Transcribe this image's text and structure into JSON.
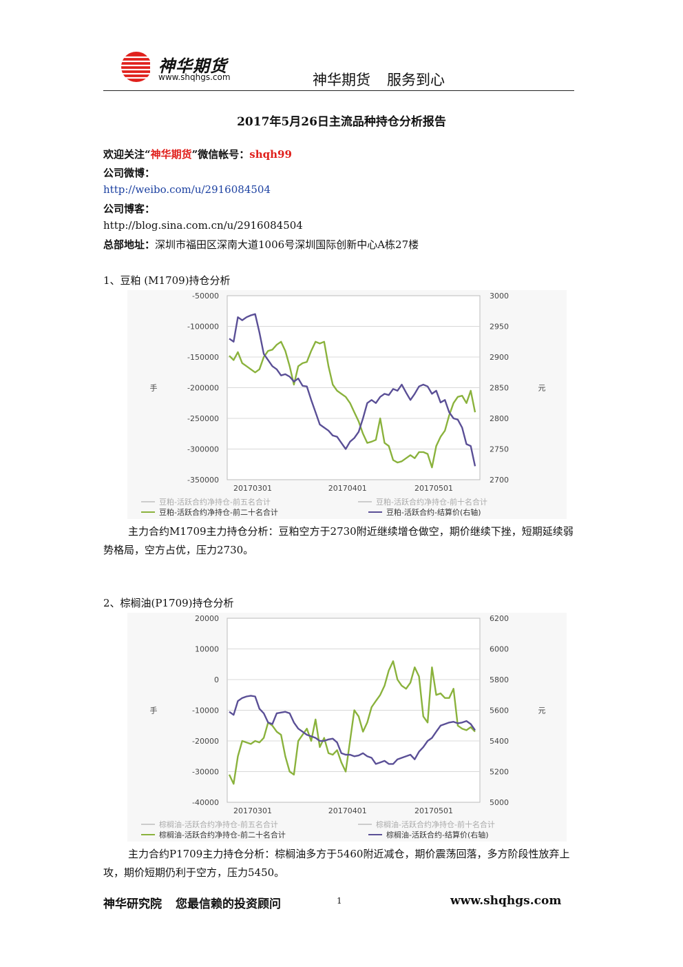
{
  "header": {
    "logo_name": "神华期货",
    "logo_url": "www.shqhgs.com",
    "slogan_left": "神华期货",
    "slogan_right": "服务到心"
  },
  "report": {
    "title": "2017年5月26日主流品种持仓分析报告",
    "follow_prefix": "欢迎关注“",
    "follow_brand": "神华期货",
    "follow_suffix": "”微信帐号：",
    "wechat_id": "shqh99",
    "weibo_label": "公司微博：",
    "weibo_url": "http://weibo.com/u/2916084504",
    "blog_label": "公司博客：",
    "blog_url": "http://blog.sina.com.cn/u/2916084504",
    "address_label": "总部地址：",
    "address": "深圳市福田区深南大道1006号深圳国际创新中心A栋27楼"
  },
  "sections": [
    {
      "heading": "1、豆粕 (M1709)持仓分析",
      "analysis": "主力合约M1709主力持仓分析：豆粕空方于2730附近继续增仓做空，期价继续下挫，短期延续弱势格局，空方占优，压力2730。"
    },
    {
      "heading": "2、棕榈油(P1709)持仓分析",
      "analysis": "主力合约P1709主力持仓分析：棕榈油多方于5460附近减仓，期价震荡回落，多方阶段性放弃上攻，期价短期仍利于空方，压力5450。"
    }
  ],
  "chart_data": [
    {
      "type": "line",
      "ylabel": "手",
      "y2label": "元",
      "ylim": [
        -350000,
        -50000
      ],
      "y2lim": [
        2700,
        3000
      ],
      "yticks": [
        "-50000",
        "-100000",
        "-150000",
        "-200000",
        "-250000",
        "-300000",
        "-350000"
      ],
      "y2ticks": [
        "3000",
        "2950",
        "2900",
        "2850",
        "2800",
        "2750",
        "2700"
      ],
      "xticks": [
        "20170301",
        "20170401",
        "20170501"
      ],
      "xtick_pos": [
        0,
        22,
        42
      ],
      "n_points": 58,
      "legend": [
        "豆粕-活跃合约净持仓-前五名合计",
        "豆粕-活跃合约净持仓-前十名合计",
        "豆粕-活跃合约净持仓-前二十名合计",
        "豆粕-活跃合约-结算价(右轴)"
      ],
      "series": [
        {
          "name": "豆粕-活跃合约净持仓-前二十名合计",
          "color": "#8ab23c",
          "axis": "left",
          "values": [
            -148000,
            -155000,
            -142000,
            -160000,
            -165000,
            -170000,
            -175000,
            -170000,
            -150000,
            -140000,
            -138000,
            -130000,
            -125000,
            -140000,
            -165000,
            -195000,
            -165000,
            -160000,
            -158000,
            -140000,
            -125000,
            -128000,
            -125000,
            -165000,
            -195000,
            -205000,
            -210000,
            -215000,
            -225000,
            -240000,
            -255000,
            -275000,
            -290000,
            -288000,
            -285000,
            -250000,
            -290000,
            -295000,
            -318000,
            -322000,
            -320000,
            -315000,
            -310000,
            -315000,
            -305000,
            -305000,
            -308000,
            -330000,
            -295000,
            -280000,
            -270000,
            -245000,
            -225000,
            -215000,
            -213000,
            -225000,
            -205000,
            -240000
          ]
        },
        {
          "name": "豆粕-活跃合约-结算价(右轴)",
          "color": "#5a4f96",
          "axis": "right",
          "values": [
            2930,
            2925,
            2965,
            2960,
            2965,
            2968,
            2970,
            2940,
            2905,
            2895,
            2885,
            2880,
            2870,
            2872,
            2868,
            2860,
            2865,
            2853,
            2852,
            2830,
            2810,
            2790,
            2785,
            2780,
            2772,
            2770,
            2760,
            2750,
            2762,
            2768,
            2778,
            2800,
            2825,
            2830,
            2825,
            2835,
            2840,
            2838,
            2848,
            2845,
            2855,
            2842,
            2830,
            2840,
            2852,
            2855,
            2852,
            2840,
            2845,
            2826,
            2830,
            2810,
            2800,
            2798,
            2785,
            2758,
            2755,
            2722
          ]
        }
      ]
    },
    {
      "type": "line",
      "ylabel": "手",
      "y2label": "元",
      "ylim": [
        -40000,
        20000
      ],
      "y2lim": [
        5000,
        6200
      ],
      "yticks": [
        "20000",
        "10000",
        "0",
        "-10000",
        "-20000",
        "-30000",
        "-40000"
      ],
      "y2ticks": [
        "6200",
        "6000",
        "5800",
        "5600",
        "5400",
        "5200",
        "5000"
      ],
      "xticks": [
        "20170301",
        "20170401",
        "20170501"
      ],
      "xtick_pos": [
        0,
        22,
        42
      ],
      "n_points": 58,
      "legend": [
        "棕榈油-活跃合约净持仓-前五名合计",
        "棕榈油-活跃合约净持仓-前十名合计",
        "棕榈油-活跃合约净持仓-前二十名合计",
        "棕榈油-活跃合约-结算价(右轴)"
      ],
      "series": [
        {
          "name": "棕榈油-活跃合约净持仓-前二十名合计",
          "color": "#8ab23c",
          "axis": "left",
          "values": [
            -31000,
            -34000,
            -25000,
            -20000,
            -20500,
            -21000,
            -20000,
            -20500,
            -19000,
            -14000,
            -15000,
            -17000,
            -18000,
            -25000,
            -30000,
            -31000,
            -20000,
            -18000,
            -16000,
            -20000,
            -13000,
            -22000,
            -19000,
            -24000,
            -24500,
            -23000,
            -27000,
            -30000,
            -20000,
            -10000,
            -12000,
            -17000,
            -14000,
            -9000,
            -7000,
            -5000,
            -2000,
            3000,
            6000,
            0,
            -2000,
            -3000,
            -1000,
            4000,
            1000,
            -12000,
            -14000,
            4000,
            -5000,
            -4500,
            -6000,
            -6000,
            -3000,
            -15000,
            -16000,
            -16500,
            -15500,
            -17000
          ]
        },
        {
          "name": "棕榈油-活跃合约-结算价(右轴)",
          "color": "#5a4f96",
          "axis": "right",
          "values": [
            5590,
            5570,
            5660,
            5680,
            5690,
            5695,
            5690,
            5610,
            5580,
            5520,
            5510,
            5580,
            5585,
            5590,
            5580,
            5520,
            5480,
            5460,
            5440,
            5430,
            5420,
            5400,
            5400,
            5410,
            5415,
            5390,
            5320,
            5310,
            5310,
            5300,
            5305,
            5320,
            5300,
            5290,
            5250,
            5260,
            5270,
            5250,
            5250,
            5280,
            5290,
            5300,
            5310,
            5280,
            5330,
            5360,
            5400,
            5420,
            5460,
            5500,
            5510,
            5520,
            5525,
            5515,
            5520,
            5530,
            5510,
            5470
          ]
        }
      ]
    }
  ],
  "footer": {
    "left_a": "神华研究院",
    "left_b": "您最信赖的投资顾问",
    "page": "1",
    "url": "www.shqhgs.com"
  }
}
